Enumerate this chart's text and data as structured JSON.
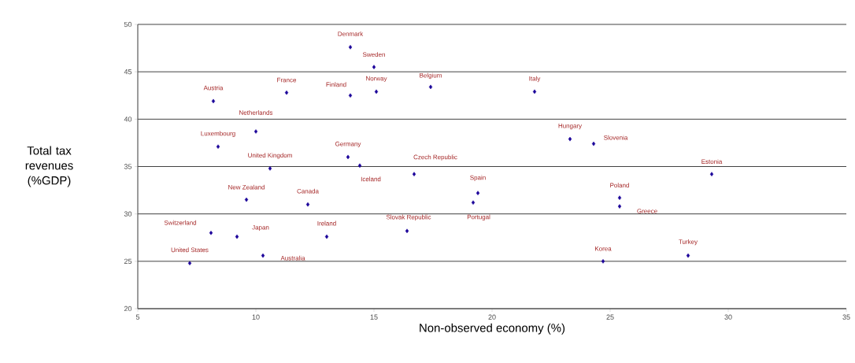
{
  "chart_data": {
    "type": "scatter",
    "xlabel": "Non-observed economy (%)",
    "ylabel": "Total tax revenues (%GDP)",
    "x": [
      14.0,
      15.0,
      8.2,
      11.3,
      14.0,
      15.1,
      17.4,
      21.8,
      10.0,
      8.4,
      23.3,
      24.3,
      13.9,
      10.6,
      14.4,
      16.7,
      29.3,
      19.4,
      19.2,
      9.6,
      12.2,
      25.4,
      25.4,
      16.4,
      8.1,
      9.2,
      13.0,
      10.3,
      7.2,
      24.7,
      28.3
    ],
    "values": [
      47.6,
      45.5,
      41.9,
      42.8,
      42.5,
      42.9,
      43.4,
      42.9,
      38.7,
      37.1,
      37.9,
      37.4,
      36.0,
      34.8,
      35.1,
      34.2,
      34.2,
      32.2,
      31.2,
      31.5,
      31.0,
      31.7,
      30.8,
      28.2,
      28.0,
      27.6,
      27.6,
      25.6,
      24.8,
      25.0,
      25.6
    ],
    "color": "#1a0099",
    "marker": "diamond",
    "xlim": [
      5,
      35
    ],
    "ylim": [
      20,
      50
    ],
    "xticks": [
      5,
      10,
      15,
      20,
      25,
      30,
      35
    ],
    "yticks": [
      20,
      25,
      30,
      35,
      40,
      45,
      50
    ],
    "grid": "y",
    "annotations": [
      {
        "text": "Denmark",
        "x": 14.0,
        "y": 47.6
      },
      {
        "text": "Sweden",
        "x": 15.0,
        "y": 45.5
      },
      {
        "text": "Austria",
        "x": 8.2,
        "y": 41.9
      },
      {
        "text": "France",
        "x": 11.3,
        "y": 42.8
      },
      {
        "text": "Finland",
        "x": 14.0,
        "y": 42.5
      },
      {
        "text": "Norway",
        "x": 15.1,
        "y": 42.9
      },
      {
        "text": "Belgium",
        "x": 17.4,
        "y": 43.4
      },
      {
        "text": "Italy",
        "x": 21.8,
        "y": 42.9
      },
      {
        "text": "Netherlands",
        "x": 10.0,
        "y": 38.7
      },
      {
        "text": "Luxembourg",
        "x": 8.4,
        "y": 37.1
      },
      {
        "text": "Hungary",
        "x": 23.3,
        "y": 37.9
      },
      {
        "text": "Slovenia",
        "x": 24.3,
        "y": 37.4
      },
      {
        "text": "Germany",
        "x": 13.9,
        "y": 36.0
      },
      {
        "text": "United Kingdom",
        "x": 10.6,
        "y": 34.8
      },
      {
        "text": "Iceland",
        "x": 14.4,
        "y": 35.1
      },
      {
        "text": "Czech Republic",
        "x": 16.7,
        "y": 34.2
      },
      {
        "text": "Estonia",
        "x": 29.3,
        "y": 34.2
      },
      {
        "text": "Spain",
        "x": 19.4,
        "y": 32.2
      },
      {
        "text": "Portugal",
        "x": 19.2,
        "y": 31.2
      },
      {
        "text": "New Zealand",
        "x": 9.6,
        "y": 31.5
      },
      {
        "text": "Canada",
        "x": 12.2,
        "y": 31.0
      },
      {
        "text": "Poland",
        "x": 25.4,
        "y": 31.7
      },
      {
        "text": "Greece",
        "x": 25.4,
        "y": 30.8
      },
      {
        "text": "Slovak Republic",
        "x": 16.4,
        "y": 28.2
      },
      {
        "text": "Switzerland",
        "x": 8.1,
        "y": 28.0
      },
      {
        "text": "Japan",
        "x": 9.2,
        "y": 27.6
      },
      {
        "text": "Ireland",
        "x": 13.0,
        "y": 27.6
      },
      {
        "text": "Australia",
        "x": 10.3,
        "y": 25.6
      },
      {
        "text": "United States",
        "x": 7.2,
        "y": 24.8
      },
      {
        "text": "Korea",
        "x": 24.7,
        "y": 25.0
      },
      {
        "text": "Turkey",
        "x": 28.3,
        "y": 25.6
      }
    ]
  }
}
